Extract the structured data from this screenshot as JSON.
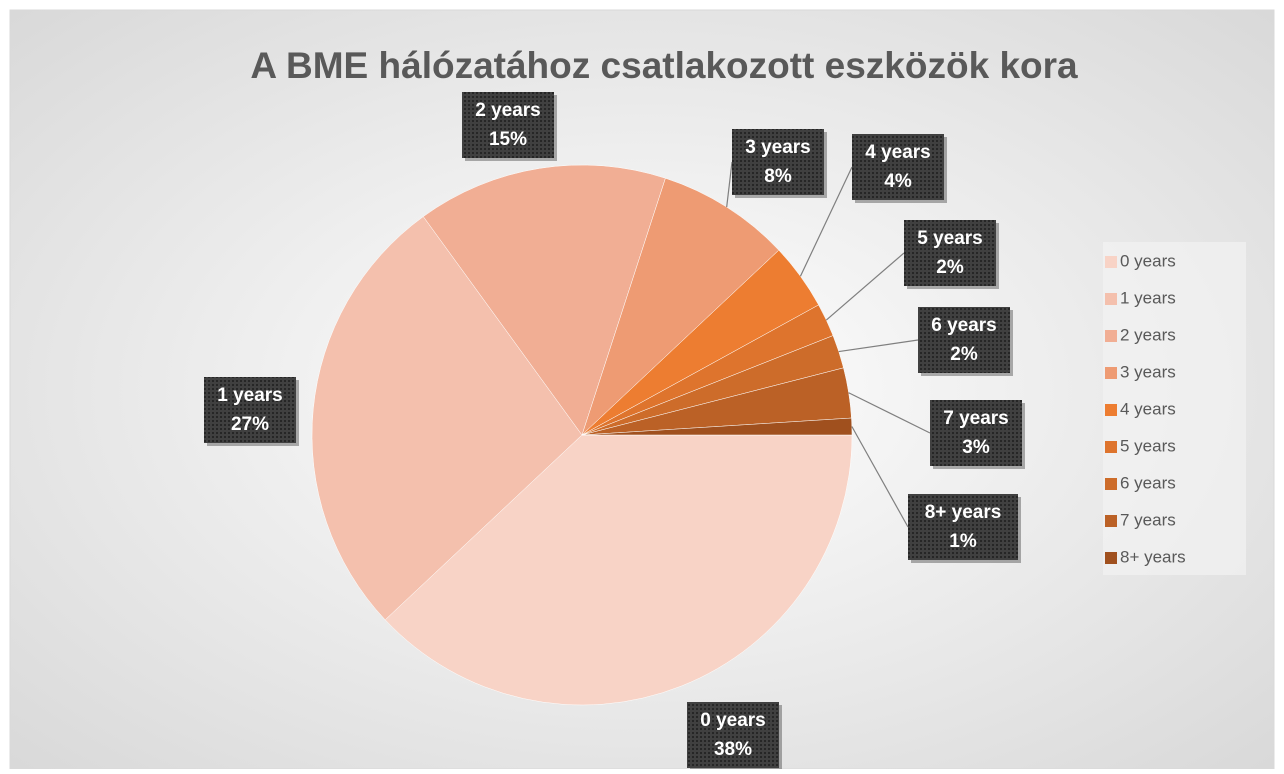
{
  "chart_data": {
    "type": "pie",
    "title": "A BME hálózatához csatlakozott eszközök kora",
    "categories": [
      "0 years",
      "1 years",
      "2 years",
      "3 years",
      "4 years",
      "5 years",
      "6 years",
      "7 years",
      "8+ years"
    ],
    "values": [
      38,
      27,
      15,
      8,
      4,
      2,
      2,
      3,
      1
    ],
    "value_labels": [
      "38%",
      "27%",
      "15%",
      "8%",
      "4%",
      "2%",
      "2%",
      "3%",
      "1%"
    ],
    "colors": [
      "#f8d3c6",
      "#f4c0ad",
      "#f1ae94",
      "#ee9b73",
      "#ed7d31",
      "#de742d",
      "#cd6c2a",
      "#bb6126",
      "#a0501e"
    ],
    "legend": "right"
  }
}
